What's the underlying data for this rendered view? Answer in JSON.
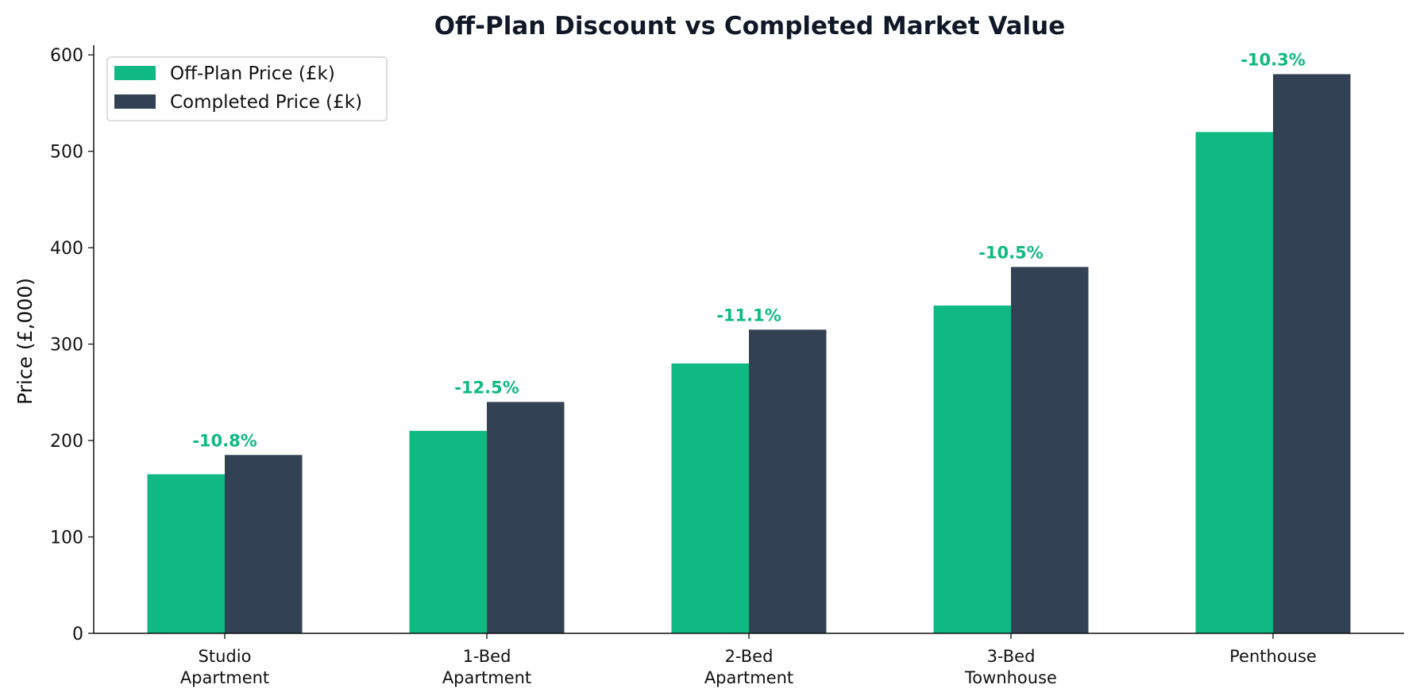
{
  "chart_data": {
    "type": "bar",
    "title": "Off-Plan Discount vs Completed Market Value",
    "xlabel": "",
    "ylabel": "Price (£,000)",
    "ylim": [
      0,
      610
    ],
    "yticks": [
      "0",
      "100",
      "200",
      "300",
      "400",
      "500",
      "600"
    ],
    "categories": [
      [
        "Studio",
        "Apartment"
      ],
      [
        "1-Bed",
        "Apartment"
      ],
      [
        "2-Bed",
        "Apartment"
      ],
      [
        "3-Bed",
        "Townhouse"
      ],
      [
        "Penthouse"
      ]
    ],
    "series": [
      {
        "name": "Off-Plan Price (£k)",
        "color": "#10b981",
        "values": [
          165,
          210,
          280,
          340,
          520
        ]
      },
      {
        "name": "Completed Price (£k)",
        "color": "#334155",
        "values": [
          185,
          240,
          315,
          380,
          580
        ]
      }
    ],
    "annotations": [
      "-10.8%",
      "-12.5%",
      "-11.1%",
      "-10.5%",
      "-10.3%"
    ],
    "annotation_color": "#10b981",
    "grid": false,
    "legend_position": "top-left"
  }
}
